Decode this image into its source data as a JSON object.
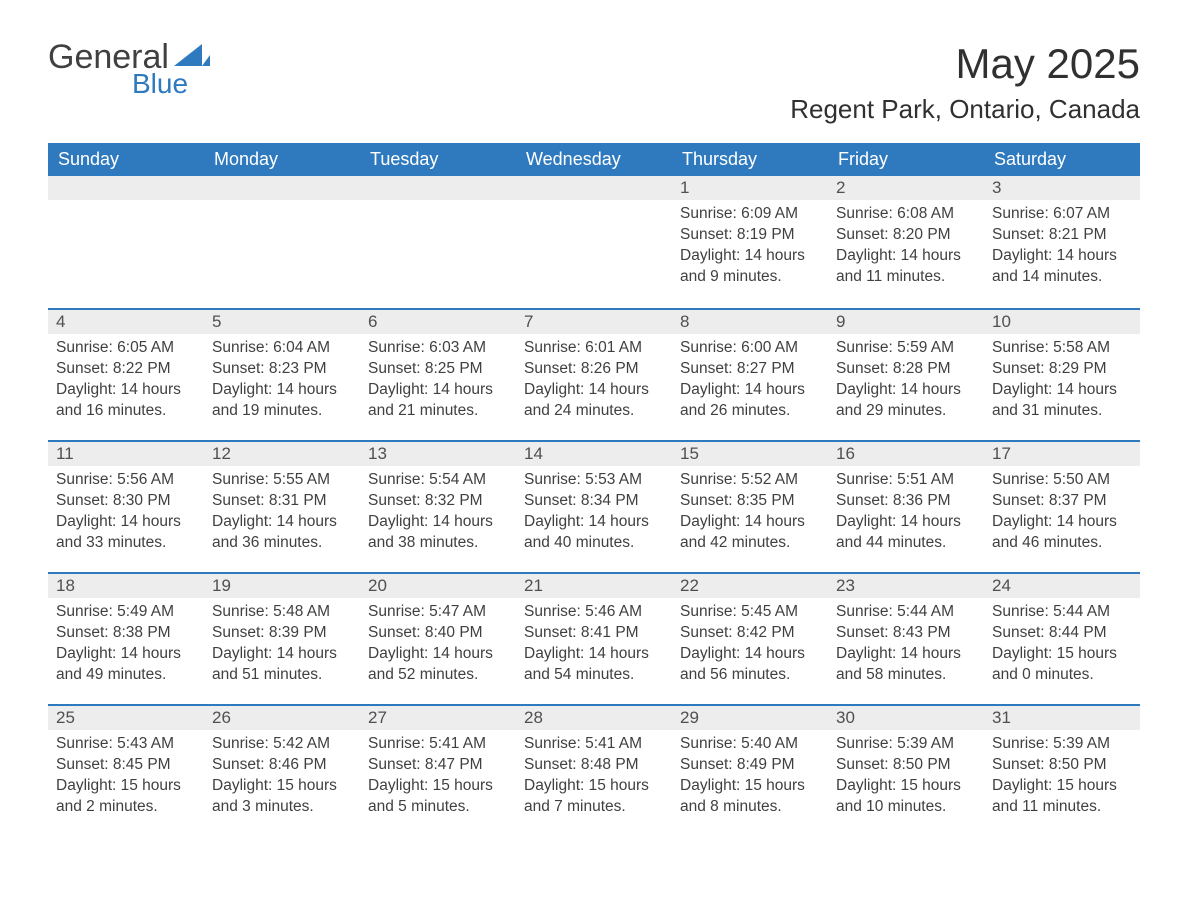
{
  "brand": {
    "name_top": "General",
    "name_bottom": "Blue",
    "text_color": "#404040",
    "accent_color": "#2f7abf"
  },
  "title": {
    "month_year": "May 2025",
    "location": "Regent Park, Ontario, Canada"
  },
  "colors": {
    "header_bg": "#2f7abf",
    "header_text": "#ffffff",
    "day_bar_bg": "#ededed",
    "day_bar_border": "#2f7abf",
    "body_text": "#404040",
    "page_bg": "#ffffff"
  },
  "typography": {
    "month_title_fontsize": 42,
    "location_fontsize": 26,
    "weekday_fontsize": 18,
    "daynum_fontsize": 17,
    "body_fontsize": 15.5
  },
  "weekdays": [
    "Sunday",
    "Monday",
    "Tuesday",
    "Wednesday",
    "Thursday",
    "Friday",
    "Saturday"
  ],
  "labels": {
    "sunrise": "Sunrise:",
    "sunset": "Sunset:",
    "daylight": "Daylight:"
  },
  "weeks": [
    [
      null,
      null,
      null,
      null,
      {
        "day": "1",
        "sunrise": "6:09 AM",
        "sunset": "8:19 PM",
        "daylight": "14 hours and 9 minutes."
      },
      {
        "day": "2",
        "sunrise": "6:08 AM",
        "sunset": "8:20 PM",
        "daylight": "14 hours and 11 minutes."
      },
      {
        "day": "3",
        "sunrise": "6:07 AM",
        "sunset": "8:21 PM",
        "daylight": "14 hours and 14 minutes."
      }
    ],
    [
      {
        "day": "4",
        "sunrise": "6:05 AM",
        "sunset": "8:22 PM",
        "daylight": "14 hours and 16 minutes."
      },
      {
        "day": "5",
        "sunrise": "6:04 AM",
        "sunset": "8:23 PM",
        "daylight": "14 hours and 19 minutes."
      },
      {
        "day": "6",
        "sunrise": "6:03 AM",
        "sunset": "8:25 PM",
        "daylight": "14 hours and 21 minutes."
      },
      {
        "day": "7",
        "sunrise": "6:01 AM",
        "sunset": "8:26 PM",
        "daylight": "14 hours and 24 minutes."
      },
      {
        "day": "8",
        "sunrise": "6:00 AM",
        "sunset": "8:27 PM",
        "daylight": "14 hours and 26 minutes."
      },
      {
        "day": "9",
        "sunrise": "5:59 AM",
        "sunset": "8:28 PM",
        "daylight": "14 hours and 29 minutes."
      },
      {
        "day": "10",
        "sunrise": "5:58 AM",
        "sunset": "8:29 PM",
        "daylight": "14 hours and 31 minutes."
      }
    ],
    [
      {
        "day": "11",
        "sunrise": "5:56 AM",
        "sunset": "8:30 PM",
        "daylight": "14 hours and 33 minutes."
      },
      {
        "day": "12",
        "sunrise": "5:55 AM",
        "sunset": "8:31 PM",
        "daylight": "14 hours and 36 minutes."
      },
      {
        "day": "13",
        "sunrise": "5:54 AM",
        "sunset": "8:32 PM",
        "daylight": "14 hours and 38 minutes."
      },
      {
        "day": "14",
        "sunrise": "5:53 AM",
        "sunset": "8:34 PM",
        "daylight": "14 hours and 40 minutes."
      },
      {
        "day": "15",
        "sunrise": "5:52 AM",
        "sunset": "8:35 PM",
        "daylight": "14 hours and 42 minutes."
      },
      {
        "day": "16",
        "sunrise": "5:51 AM",
        "sunset": "8:36 PM",
        "daylight": "14 hours and 44 minutes."
      },
      {
        "day": "17",
        "sunrise": "5:50 AM",
        "sunset": "8:37 PM",
        "daylight": "14 hours and 46 minutes."
      }
    ],
    [
      {
        "day": "18",
        "sunrise": "5:49 AM",
        "sunset": "8:38 PM",
        "daylight": "14 hours and 49 minutes."
      },
      {
        "day": "19",
        "sunrise": "5:48 AM",
        "sunset": "8:39 PM",
        "daylight": "14 hours and 51 minutes."
      },
      {
        "day": "20",
        "sunrise": "5:47 AM",
        "sunset": "8:40 PM",
        "daylight": "14 hours and 52 minutes."
      },
      {
        "day": "21",
        "sunrise": "5:46 AM",
        "sunset": "8:41 PM",
        "daylight": "14 hours and 54 minutes."
      },
      {
        "day": "22",
        "sunrise": "5:45 AM",
        "sunset": "8:42 PM",
        "daylight": "14 hours and 56 minutes."
      },
      {
        "day": "23",
        "sunrise": "5:44 AM",
        "sunset": "8:43 PM",
        "daylight": "14 hours and 58 minutes."
      },
      {
        "day": "24",
        "sunrise": "5:44 AM",
        "sunset": "8:44 PM",
        "daylight": "15 hours and 0 minutes."
      }
    ],
    [
      {
        "day": "25",
        "sunrise": "5:43 AM",
        "sunset": "8:45 PM",
        "daylight": "15 hours and 2 minutes."
      },
      {
        "day": "26",
        "sunrise": "5:42 AM",
        "sunset": "8:46 PM",
        "daylight": "15 hours and 3 minutes."
      },
      {
        "day": "27",
        "sunrise": "5:41 AM",
        "sunset": "8:47 PM",
        "daylight": "15 hours and 5 minutes."
      },
      {
        "day": "28",
        "sunrise": "5:41 AM",
        "sunset": "8:48 PM",
        "daylight": "15 hours and 7 minutes."
      },
      {
        "day": "29",
        "sunrise": "5:40 AM",
        "sunset": "8:49 PM",
        "daylight": "15 hours and 8 minutes."
      },
      {
        "day": "30",
        "sunrise": "5:39 AM",
        "sunset": "8:50 PM",
        "daylight": "15 hours and 10 minutes."
      },
      {
        "day": "31",
        "sunrise": "5:39 AM",
        "sunset": "8:50 PM",
        "daylight": "15 hours and 11 minutes."
      }
    ]
  ]
}
